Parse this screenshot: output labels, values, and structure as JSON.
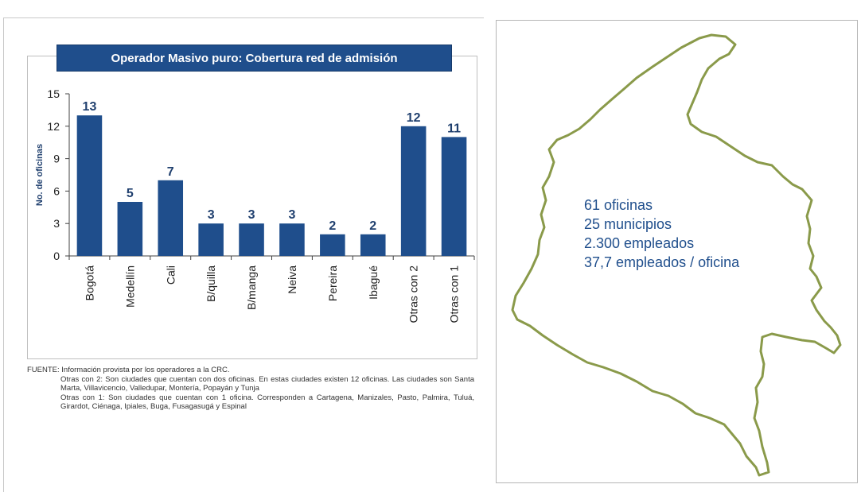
{
  "chart_data": {
    "type": "bar",
    "title": "Operador Masivo puro: Cobertura red de admisión",
    "ylabel": "No. de oficinas",
    "ylim": [
      0,
      15
    ],
    "yticks": [
      "0",
      "3",
      "6",
      "9",
      "12",
      "15"
    ],
    "categories": [
      "Bogotá",
      "Medellín",
      "Cali",
      "B/quilla",
      "B/manga",
      "Neiva",
      "Pereira",
      "Ibagué",
      "Otras con 2",
      "Otras con 1"
    ],
    "values": [
      13,
      5,
      7,
      3,
      3,
      3,
      2,
      2,
      12,
      11
    ],
    "grid": false,
    "legend": "none",
    "bar_color": "#1f4e8c"
  },
  "source": {
    "fuente": "FUENTE: Información provista por los operadores a la CRC.",
    "note_2": "Otras con 2: Son ciudades que cuentan con dos oficinas. En estas ciudades existen 12 oficinas. Las ciudades son Santa Marta, Villavicencio, Valledupar, Montería, Popayán y Tunja",
    "note_1": "Otras con 1: Son ciudades que cuentan con 1 oficina. Corresponden a Cartagena, Manizales, Pasto, Palmira, Tuluá, Girardot, Ciénaga, Ipiales, Buga, Fusagasugá y Espinal"
  },
  "map_stats": {
    "offices": "61 oficinas",
    "municipalities": "25 municipios",
    "employees": "2.300 empleados",
    "ratio": "37,7 empleados / oficina"
  },
  "colors": {
    "bar": "#1f4e8c",
    "title_bar": "#1f4e8c",
    "map_outline": "#8a9a4a",
    "stats_text": "#1f4e8c"
  }
}
